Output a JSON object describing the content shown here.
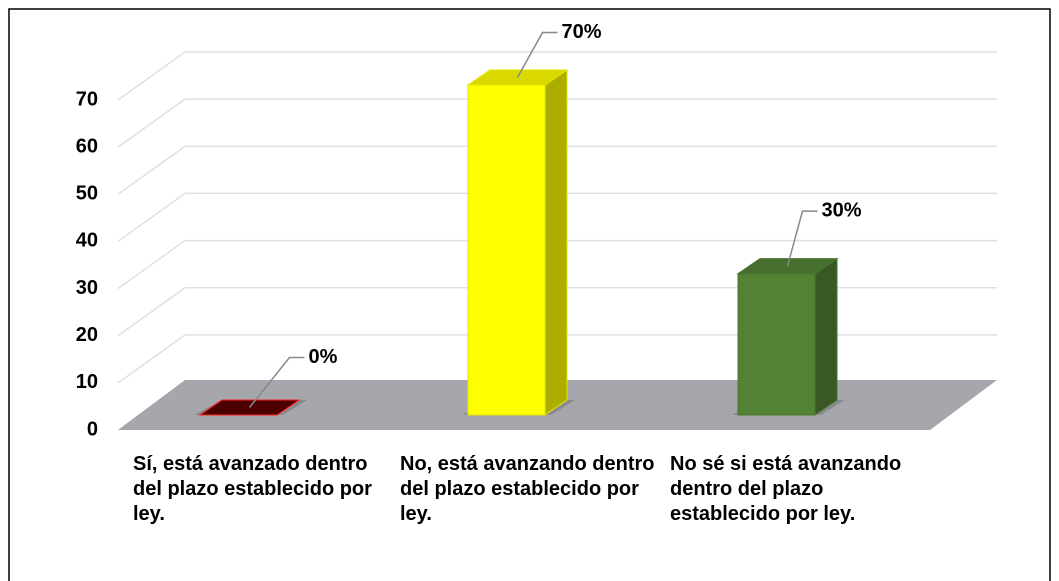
{
  "chart_data": {
    "type": "bar3d",
    "categories": [
      "Sí, está avanzado dentro del plazo establecido por ley.",
      "No, está avanzando dentro del plazo establecido por ley.",
      "No sé si está avanzando dentro del plazo establecido por ley."
    ],
    "values": [
      0,
      70,
      30
    ],
    "value_labels": [
      "0%",
      "70%",
      "30%"
    ],
    "colors": [
      "#8b0000",
      "#ffff00",
      "#548235"
    ],
    "ylim": [
      0,
      70
    ],
    "yticks": [
      0,
      10,
      20,
      30,
      40,
      50,
      60,
      70
    ],
    "grid": true
  }
}
